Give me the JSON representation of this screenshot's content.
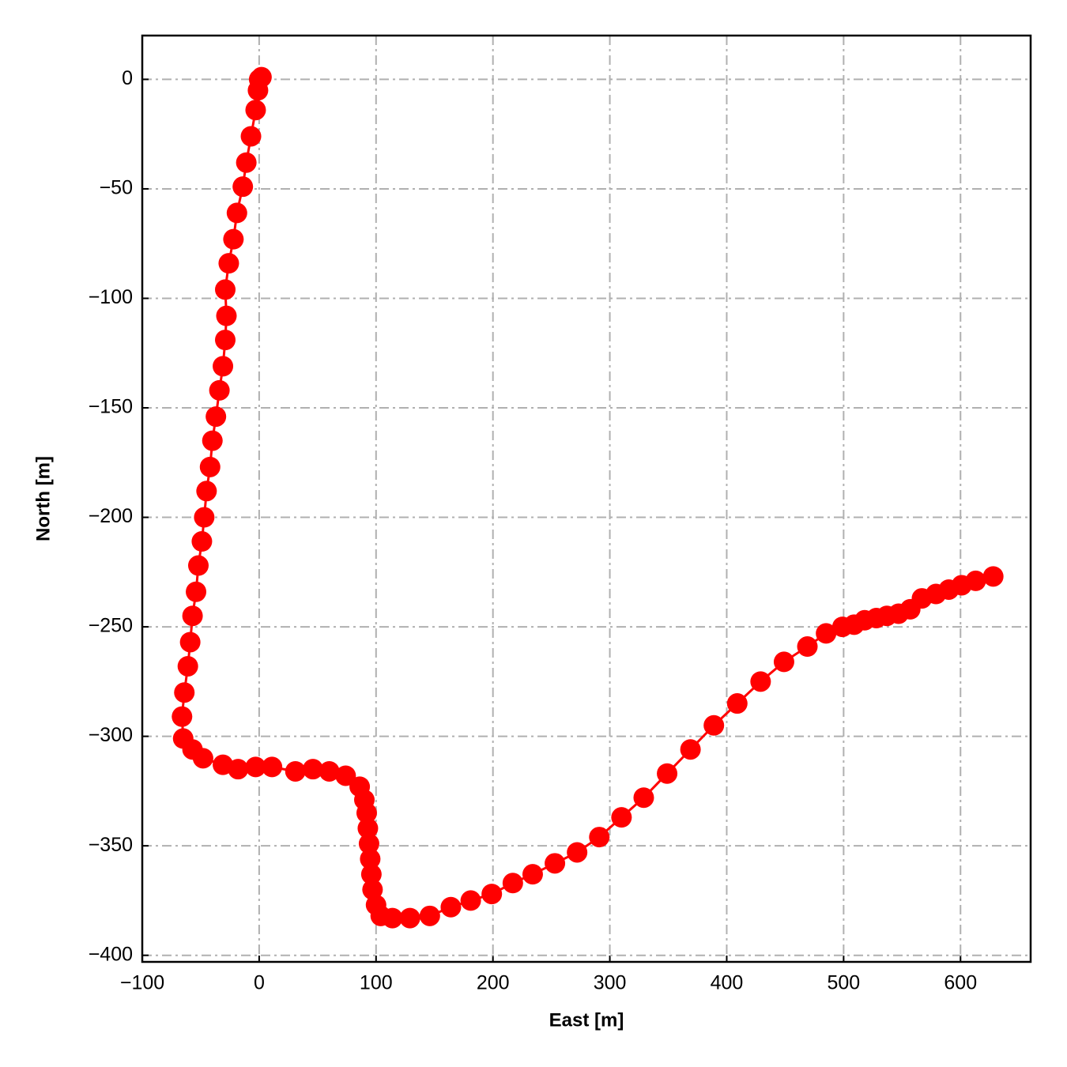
{
  "chart_data": {
    "type": "line",
    "x_label": "East [m]",
    "y_label": "North [m]",
    "x": [
      2,
      0,
      -1,
      -3,
      -7,
      -11,
      -14,
      -19,
      -22,
      -26,
      -29,
      -28,
      -29,
      -31,
      -34,
      -37,
      -40,
      -42,
      -45,
      -47,
      -49,
      -52,
      -54,
      -57,
      -59,
      -61,
      -64,
      -66,
      -65,
      -57,
      -48,
      -31,
      -18,
      -3,
      11,
      31,
      46,
      60,
      74,
      86,
      90,
      92,
      93,
      94,
      95,
      96,
      97,
      100,
      104,
      114,
      129,
      146,
      164,
      181,
      199,
      217,
      234,
      253,
      272,
      291,
      310,
      329,
      349,
      369,
      389,
      409,
      429,
      449,
      469,
      485,
      499,
      509,
      518,
      528,
      537,
      547,
      557,
      567,
      579,
      590,
      601,
      613,
      628
    ],
    "series": [
      {
        "color": "#ff0000",
        "values": [
          1,
          0,
          -5,
          -14,
          -26,
          -38,
          -49,
          -61,
          -73,
          -84,
          -96,
          -108,
          -119,
          -131,
          -142,
          -154,
          -165,
          -177,
          -188,
          -200,
          -211,
          -222,
          -234,
          -245,
          -257,
          -268,
          -280,
          -291,
          -301,
          -306,
          -310,
          -313,
          -315,
          -314,
          -314,
          -316,
          -315,
          -316,
          -318,
          -323,
          -329,
          -335,
          -342,
          -349,
          -356,
          -363,
          -370,
          -377,
          -382,
          -383,
          -383,
          -382,
          -378,
          -375,
          -372,
          -367,
          -363,
          -358,
          -353,
          -346,
          -337,
          -328,
          -317,
          -306,
          -295,
          -285,
          -275,
          -266,
          -259,
          -253,
          -250,
          -249,
          -247,
          -246,
          -245,
          -244,
          -242,
          -237,
          -235,
          -233,
          -231,
          -229,
          -227
        ]
      }
    ],
    "markers": true,
    "xlim": [
      -100,
      660
    ],
    "ylim": [
      -403,
      20
    ],
    "xticks": [
      {
        "value": -100,
        "label": "−100"
      },
      0,
      100,
      200,
      300,
      400,
      500,
      600
    ],
    "yticks": [
      0,
      {
        "value": -50,
        "label": "−50"
      },
      {
        "value": -100,
        "label": "−100"
      },
      {
        "value": -150,
        "label": "−150"
      },
      {
        "value": -200,
        "label": "−200"
      },
      {
        "value": -250,
        "label": "−250"
      },
      {
        "value": -300,
        "label": "−300"
      },
      {
        "value": -350,
        "label": "−350"
      },
      {
        "value": -400,
        "label": "−400"
      }
    ],
    "grid": true
  }
}
